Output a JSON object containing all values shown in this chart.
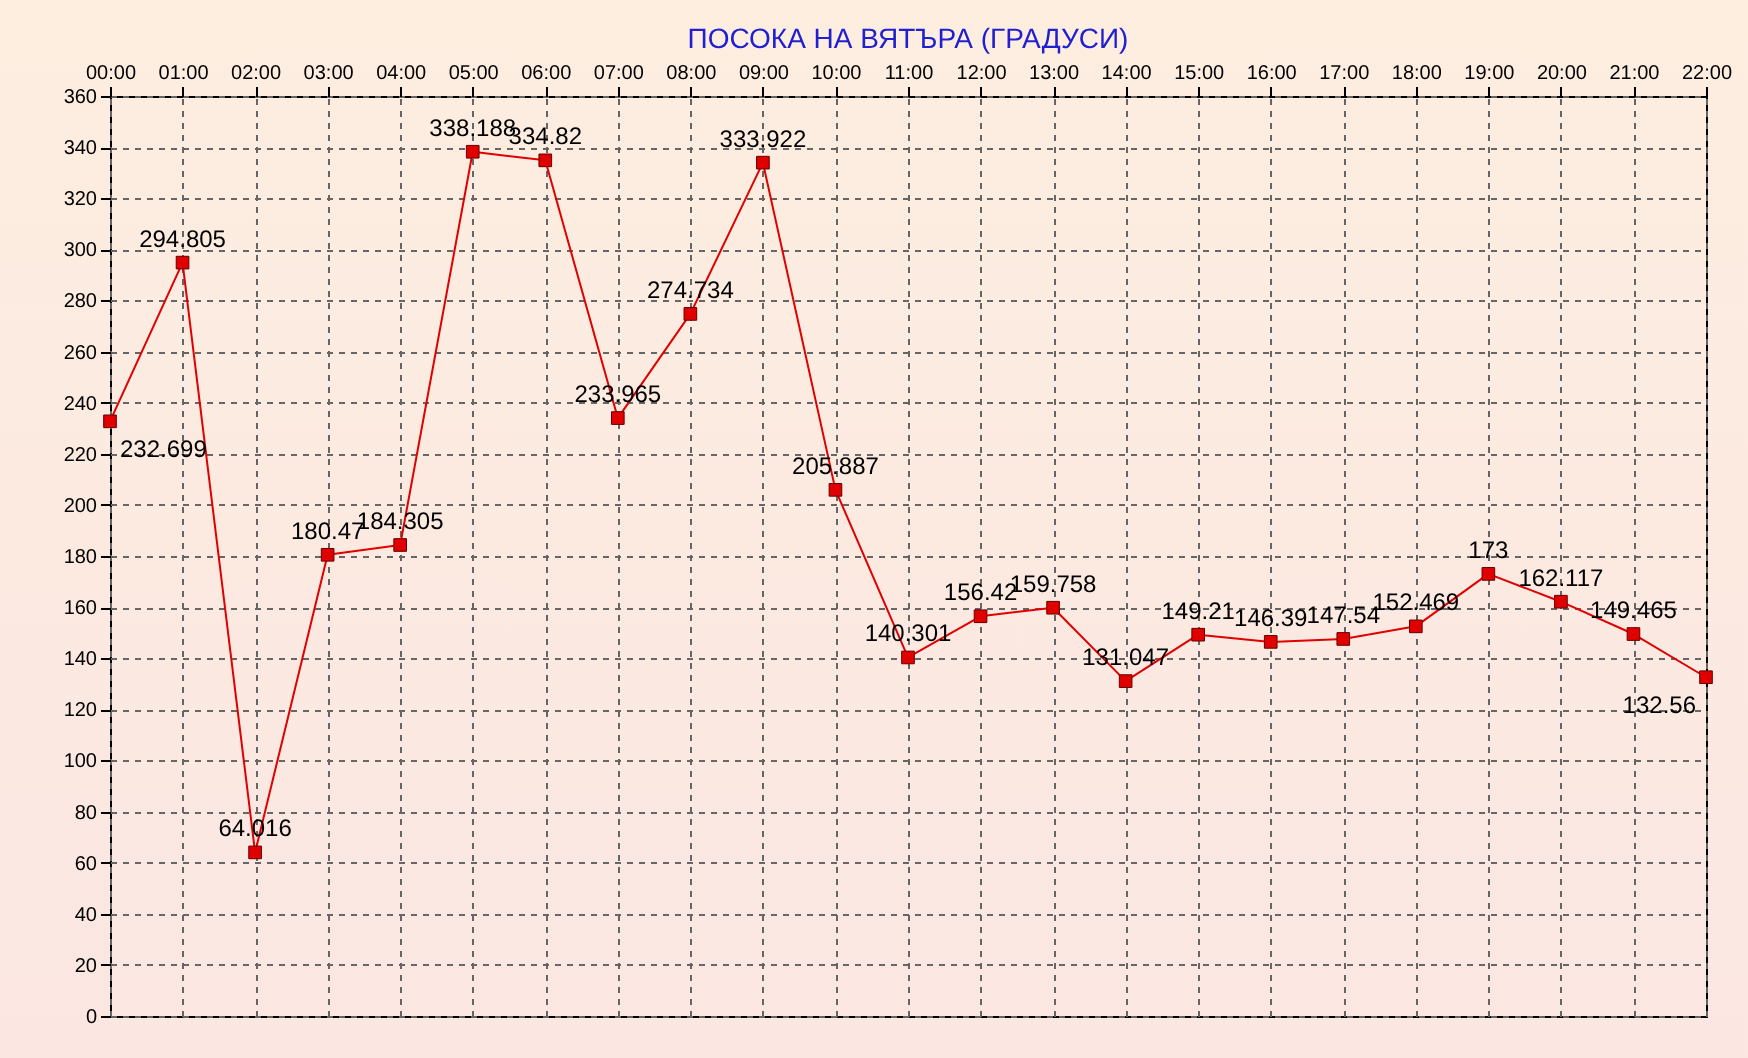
{
  "chart_data": {
    "type": "line",
    "title": "ПОСОКА НА ВЯТЪРА    (ГРАДУСИ)",
    "categories": [
      "00:00",
      "01:00",
      "02:00",
      "03:00",
      "04:00",
      "05:00",
      "06:00",
      "07:00",
      "08:00",
      "09:00",
      "10:00",
      "11:00",
      "12:00",
      "13:00",
      "14:00",
      "15:00",
      "16:00",
      "17:00",
      "18:00",
      "19:00",
      "20:00",
      "21:00",
      "22:00"
    ],
    "series": [
      {
        "color": "#e00000",
        "values": [
          232.699,
          294.805,
          64.016,
          180.47,
          184.305,
          338.188,
          334.82,
          233.965,
          274.734,
          333.922,
          205.887,
          140.301,
          156.42,
          159.758,
          131.047,
          149.21,
          146.39,
          147.54,
          152.469,
          173,
          162.117,
          149.465,
          132.56
        ]
      }
    ],
    "ylim": [
      0,
      360
    ],
    "yticks": [
      0,
      20,
      40,
      60,
      80,
      100,
      120,
      140,
      160,
      180,
      200,
      220,
      240,
      260,
      280,
      300,
      320,
      340,
      360
    ],
    "grid": true,
    "marker": "square",
    "line_style": "solid",
    "data_labels": true
  }
}
